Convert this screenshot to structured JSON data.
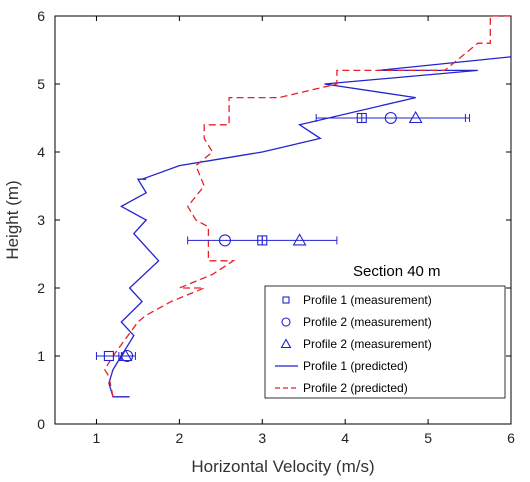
{
  "chart_data": {
    "type": "line",
    "xlabel": "Horizontal Velocity (m/s)",
    "ylabel": "Height (m)",
    "xlim": [
      0.5,
      6
    ],
    "ylim": [
      0,
      6
    ],
    "xticks": [
      "1",
      "2",
      "3",
      "4",
      "5",
      "6"
    ],
    "yticks": [
      "0",
      "1",
      "2",
      "3",
      "4",
      "5",
      "6"
    ],
    "grid": false,
    "legend_position": "bottom-right",
    "annotation": "Section 40 m",
    "colors": {
      "series": "#2323d0",
      "predicted2": "#e8202a"
    },
    "measurements": [
      {
        "name": "Profile 1 (measurement)",
        "marker": "square",
        "points": [
          {
            "x": 1.15,
            "y": 1.0,
            "xerr": 0.15
          },
          {
            "x": 3.0,
            "y": 2.7,
            "xerr": 0
          },
          {
            "x": 4.2,
            "y": 4.5,
            "xerr": 0
          }
        ]
      },
      {
        "name": "Profile 2 (measurement)",
        "marker": "circle",
        "points": [
          {
            "x": 1.37,
            "y": 1.0,
            "xerr": 0.1
          },
          {
            "x": 2.55,
            "y": 2.7,
            "xerr": 0.45
          },
          {
            "x": 4.55,
            "y": 4.5,
            "xerr": 0.9
          }
        ]
      },
      {
        "name": "Profile 2 (measurement)",
        "marker": "triangle",
        "points": [
          {
            "x": 1.35,
            "y": 1.0,
            "xerr": 0
          },
          {
            "x": 3.45,
            "y": 2.7,
            "xerr": 0.45
          },
          {
            "x": 4.85,
            "y": 4.5,
            "xerr": 0.65
          }
        ]
      }
    ],
    "predicted": [
      {
        "name": "Profile 1 (predicted)",
        "style": "solid",
        "x": [
          1.4,
          1.2,
          1.15,
          1.2,
          1.3,
          1.45,
          1.3,
          1.55,
          1.4,
          1.75,
          1.45,
          1.6,
          1.3,
          1.6,
          1.5,
          1.6,
          1.55,
          2.0,
          2.5,
          3.0,
          3.7,
          3.45,
          4.85,
          3.75,
          5.6,
          4.4,
          6.0,
          6.0
        ],
        "y": [
          0.4,
          0.4,
          0.6,
          0.8,
          1.0,
          1.3,
          1.5,
          1.8,
          2.0,
          2.4,
          2.8,
          3.0,
          3.2,
          3.4,
          3.6,
          3.6,
          3.6,
          3.8,
          3.9,
          4.0,
          4.2,
          4.4,
          4.8,
          5.0,
          5.2,
          5.2,
          5.4,
          5.4
        ]
      },
      {
        "name": "Profile 2 (predicted)",
        "style": "dashed",
        "x": [
          1.2,
          1.15,
          1.1,
          1.2,
          1.5,
          1.6,
          1.9,
          2.3,
          2.0,
          2.4,
          2.65,
          2.35,
          2.35,
          2.2,
          2.1,
          2.3,
          2.2,
          2.4,
          2.3,
          2.3,
          2.6,
          2.6,
          3.2,
          3.9,
          3.9,
          3.95,
          5.2,
          5.4,
          5.6,
          5.75,
          5.75,
          6.0
        ],
        "y": [
          0.4,
          0.7,
          0.8,
          1.0,
          1.5,
          1.6,
          1.8,
          2.0,
          2.0,
          2.2,
          2.4,
          2.4,
          2.9,
          3.0,
          3.2,
          3.5,
          3.8,
          4.0,
          4.2,
          4.4,
          4.4,
          4.8,
          4.8,
          5.0,
          5.2,
          5.2,
          5.2,
          5.4,
          5.6,
          5.6,
          6.0,
          6.0
        ]
      }
    ]
  }
}
